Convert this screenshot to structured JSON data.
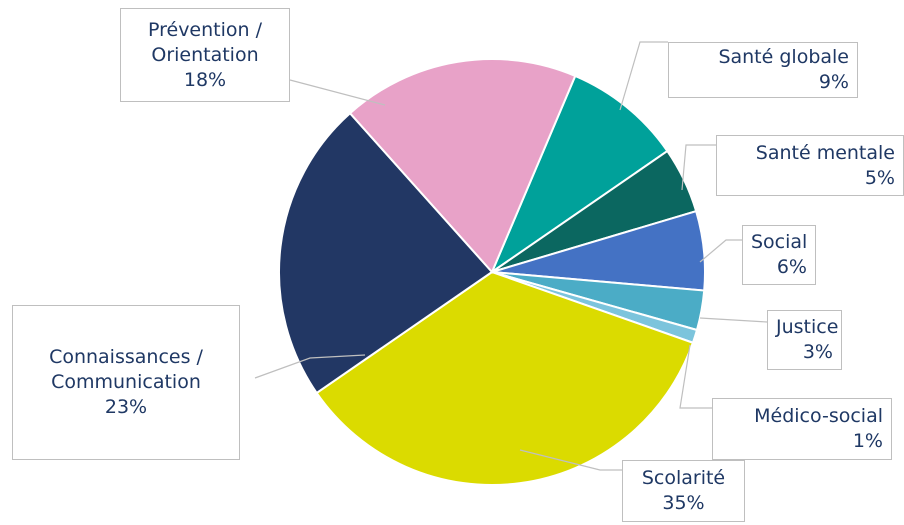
{
  "chart_data": {
    "type": "pie",
    "categories": [
      "Santé globale",
      "Santé mentale",
      "Social",
      "Justice",
      "Médico-social",
      "Scolarité",
      "Connaissances / Communication",
      "Prévention / Orientation"
    ],
    "values": [
      9,
      5,
      6,
      3,
      1,
      35,
      23,
      18
    ],
    "value_labels": [
      "9%",
      "5%",
      "6%",
      "3%",
      "1%",
      "35%",
      "23%",
      "18%"
    ],
    "colors": [
      "#00a19a",
      "#0b6760",
      "#4472c4",
      "#4bacc6",
      "#7cc4dc",
      "#dbdb00",
      "#223764",
      "#e8a2c8"
    ]
  }
}
